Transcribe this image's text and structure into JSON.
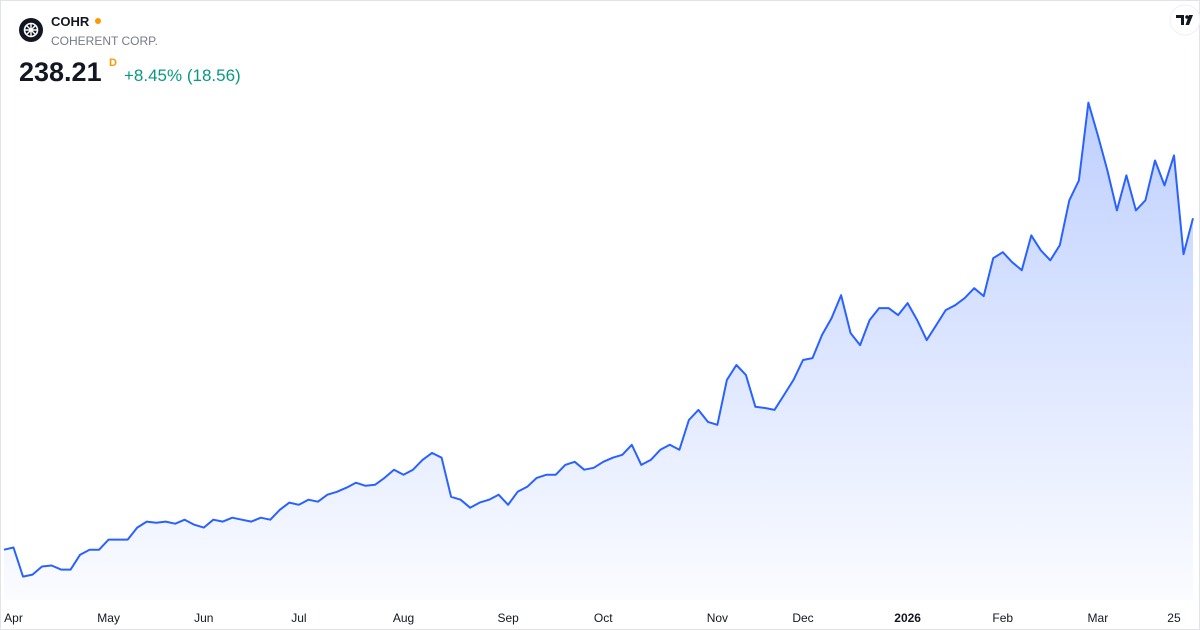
{
  "header": {
    "symbol": "COHR",
    "name": "COHERENT CORP.",
    "price": "238.21",
    "interval": "D",
    "change": "+8.45% (18.56)"
  },
  "chart_data": {
    "type": "area",
    "color": "#2962ff",
    "ylim": [
      41,
      351
    ],
    "categories": [
      null,
      "Apr",
      null,
      null,
      null,
      null,
      null,
      null,
      null,
      null,
      null,
      "May",
      null,
      null,
      null,
      null,
      null,
      null,
      null,
      null,
      null,
      "Jun",
      null,
      null,
      null,
      null,
      null,
      null,
      null,
      null,
      null,
      "Jul",
      null,
      null,
      null,
      null,
      null,
      null,
      null,
      null,
      null,
      null,
      "Aug",
      null,
      null,
      null,
      null,
      null,
      null,
      null,
      null,
      null,
      null,
      "Sep",
      null,
      null,
      null,
      null,
      null,
      null,
      null,
      null,
      null,
      "Oct",
      null,
      null,
      null,
      null,
      null,
      null,
      null,
      null,
      null,
      null,
      null,
      "Nov",
      null,
      null,
      null,
      null,
      null,
      null,
      null,
      null,
      "Dec",
      null,
      null,
      null,
      null,
      null,
      null,
      null,
      null,
      null,
      null,
      "2026",
      null,
      null,
      null,
      null,
      null,
      null,
      null,
      null,
      null,
      "Feb",
      null,
      null,
      null,
      null,
      null,
      null,
      null,
      null,
      null,
      "Mar",
      null,
      null,
      null,
      null,
      null,
      null,
      null,
      "25",
      null,
      null
    ],
    "values": [
      67.0,
      68.1,
      53.1,
      54.1,
      58.3,
      58.8,
      56.7,
      56.7,
      64.4,
      67.0,
      67.0,
      72.2,
      72.2,
      72.2,
      78.4,
      81.5,
      80.9,
      81.5,
      80.4,
      82.5,
      79.9,
      78.4,
      82.5,
      81.5,
      83.5,
      82.5,
      81.5,
      83.5,
      82.5,
      87.6,
      91.3,
      90.2,
      92.8,
      91.8,
      95.4,
      96.9,
      99.0,
      101.6,
      100.0,
      100.5,
      104.1,
      108.3,
      105.7,
      108.3,
      113.4,
      117.0,
      114.5,
      94.3,
      92.8,
      88.7,
      91.3,
      92.8,
      95.4,
      90.2,
      96.9,
      99.5,
      104.1,
      105.7,
      105.7,
      110.8,
      112.4,
      108.3,
      109.3,
      112.4,
      114.5,
      116.0,
      121.2,
      110.8,
      113.4,
      118.6,
      121.2,
      118.6,
      134.0,
      139.2,
      133.0,
      131.5,
      154.7,
      162.4,
      157.3,
      140.8,
      140.2,
      139.2,
      146.9,
      154.7,
      165.0,
      166.0,
      177.9,
      186.6,
      198.5,
      178.9,
      172.7,
      185.6,
      191.8,
      191.8,
      188.2,
      194.4,
      185.6,
      175.3,
      183.0,
      190.8,
      193.3,
      197.0,
      202.1,
      198.0,
      217.6,
      220.7,
      215.5,
      211.4,
      229.4,
      221.7,
      216.5,
      224.3,
      247.5,
      257.8,
      298.0,
      281.0,
      262.9,
      242.3,
      260.4,
      242.3,
      247.5,
      268.1,
      255.2,
      270.7,
      219.65,
      238.21
    ]
  }
}
